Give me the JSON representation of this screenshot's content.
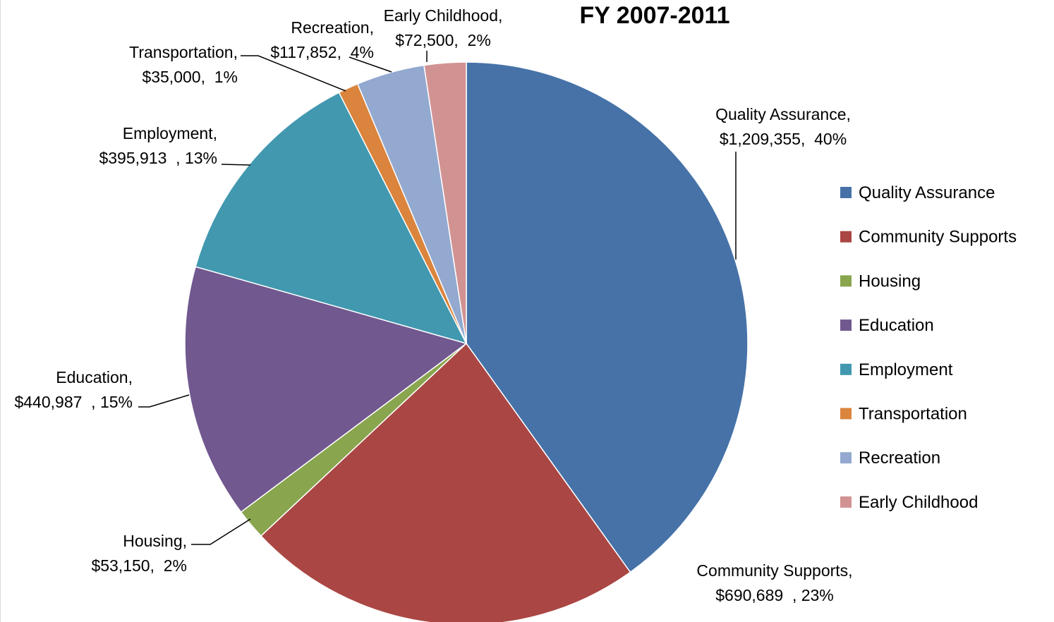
{
  "chart_data": {
    "type": "pie",
    "title": "FY 2007-2011",
    "legend_position": "right",
    "slices": [
      {
        "name": "Quality Assurance",
        "value": 1209355,
        "value_label": "$1,209,355",
        "percent_label": "40%",
        "color": "#4672A8",
        "label_lines": [
          "Quality Assurance,",
          "$1,209,355,  40%"
        ]
      },
      {
        "name": "Community Supports",
        "value": 690689,
        "value_label": "$690,689",
        "percent_label": "23%",
        "color": "#AA4643",
        "label_lines": [
          "Community Supports,",
          "$690,689  , 23%"
        ]
      },
      {
        "name": "Housing",
        "value": 53150,
        "value_label": "$53,150",
        "percent_label": "2%",
        "color": "#89A54E",
        "label_lines": [
          "Housing,",
          "$53,150,  2%"
        ]
      },
      {
        "name": "Education",
        "value": 440987,
        "value_label": "$440,987",
        "percent_label": "15%",
        "color": "#71588F",
        "label_lines": [
          "Education,",
          "$440,987  , 15%"
        ]
      },
      {
        "name": "Employment",
        "value": 395913,
        "value_label": "$395,913",
        "percent_label": "13%",
        "color": "#4198AF",
        "label_lines": [
          "Employment,",
          "$395,913  , 13%"
        ]
      },
      {
        "name": "Transportation",
        "value": 35000,
        "value_label": "$35,000",
        "percent_label": "1%",
        "color": "#DB843D",
        "label_lines": [
          "Transportation,",
          "$35,000,  1%"
        ]
      },
      {
        "name": "Recreation",
        "value": 117852,
        "value_label": "$117,852",
        "percent_label": "4%",
        "color": "#93A9CF",
        "label_lines": [
          "Recreation,",
          "$117,852,  4%"
        ]
      },
      {
        "name": "Early Childhood",
        "value": 72500,
        "value_label": "$72,500",
        "percent_label": "2%",
        "color": "#D19392",
        "label_lines": [
          "Early Childhood,",
          "$72,500,  2%"
        ]
      }
    ]
  }
}
